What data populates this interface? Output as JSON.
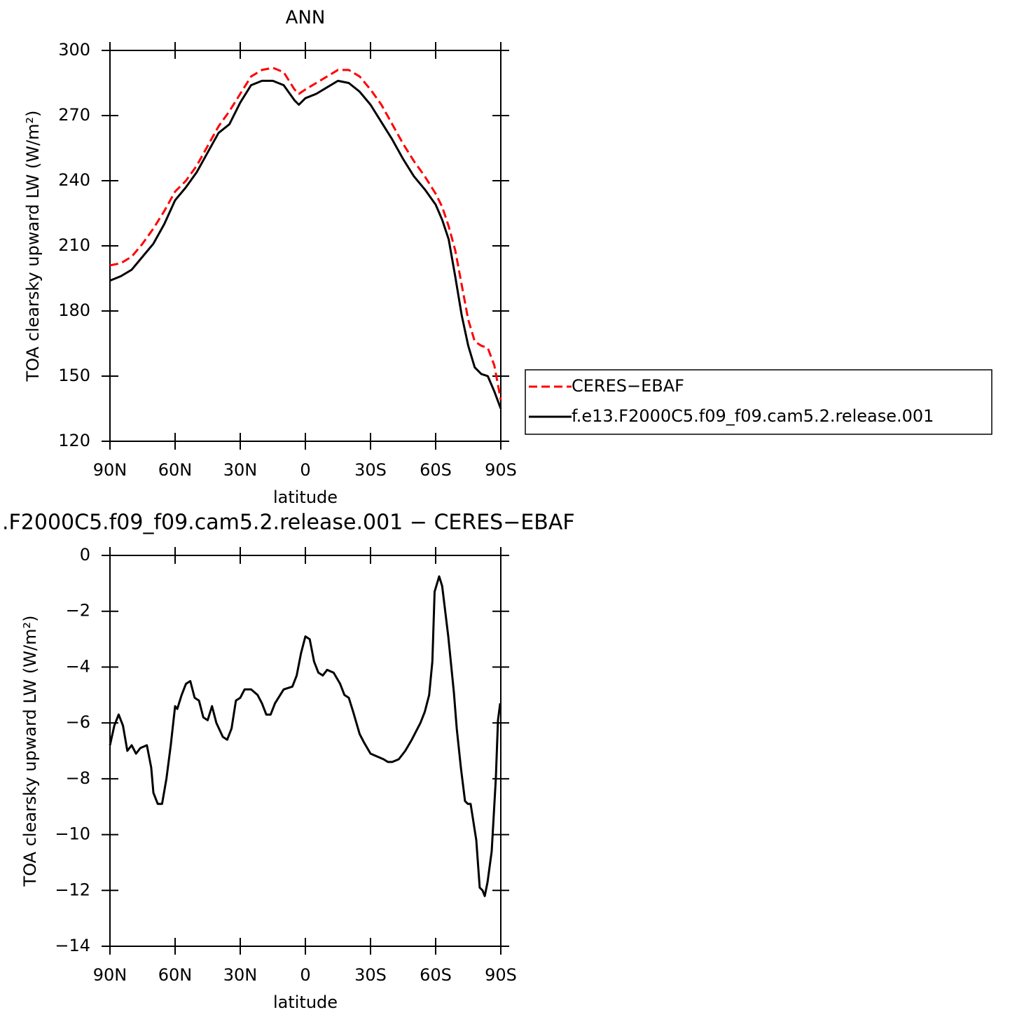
{
  "chart_data": [
    {
      "type": "line",
      "title": "ANN",
      "xlabel": "latitude",
      "ylabel": "TOA clearsky upward LW (W/m²)",
      "x": [
        90,
        85,
        80,
        75,
        70,
        65,
        60,
        55,
        50,
        45,
        40,
        35,
        30,
        25,
        20,
        15,
        10,
        5,
        3,
        0,
        -5,
        -10,
        -15,
        -20,
        -25,
        -30,
        -35,
        -40,
        -45,
        -50,
        -55,
        -60,
        -63,
        -66,
        -69,
        -72,
        -75,
        -78,
        -81,
        -84,
        -87,
        -90
      ],
      "series": [
        {
          "name": "CERES−EBAF",
          "color": "#ff0000",
          "line_style": "dashed",
          "values": [
            201,
            202,
            205,
            211,
            218,
            226,
            235,
            240,
            247,
            256,
            265,
            272,
            280,
            288,
            291,
            292,
            290,
            282,
            280,
            282,
            285,
            288,
            291,
            291,
            288,
            282,
            275,
            266,
            257,
            249,
            242,
            234,
            228,
            219,
            208,
            192,
            176,
            166,
            164,
            163,
            155,
            139
          ]
        },
        {
          "name": "f.e13.F2000C5.f09_f09.cam5.2.release.001",
          "color": "#000000",
          "line_style": "solid",
          "values": [
            194,
            196,
            199,
            205,
            211,
            220,
            231,
            237,
            244,
            253,
            262,
            266,
            276,
            284,
            286,
            286,
            284,
            277,
            275,
            278,
            280,
            283,
            286,
            285,
            281,
            275,
            267,
            259,
            250,
            242,
            236,
            229,
            222,
            213,
            196,
            178,
            164,
            154,
            151,
            150,
            143,
            135
          ]
        }
      ],
      "xlim": [
        90,
        -90
      ],
      "xticks": [
        {
          "value": 90,
          "label": "90N"
        },
        {
          "value": 60,
          "label": "60N"
        },
        {
          "value": 30,
          "label": "30N"
        },
        0,
        {
          "value": -30,
          "label": "30S"
        },
        {
          "value": -60,
          "label": "60S"
        },
        {
          "value": -90,
          "label": "90S"
        }
      ],
      "ylim": [
        120,
        300
      ],
      "yticks": [
        120,
        150,
        180,
        210,
        240,
        270,
        300
      ],
      "legend": "right"
    },
    {
      "type": "line",
      "title": ".F2000C5.f09_f09.cam5.2.release.001 − CERES−EBAF",
      "xlabel": "latitude",
      "ylabel": "TOA clearsky upward LW (W/m²)",
      "x": [
        90,
        88,
        86,
        84,
        82,
        80,
        78,
        76,
        73,
        71,
        70,
        68,
        66,
        64,
        62,
        60,
        59,
        57,
        55,
        53,
        51,
        49,
        47,
        45,
        43,
        41,
        38,
        36,
        34,
        32,
        30,
        28,
        25,
        22,
        20,
        18,
        16,
        14,
        10,
        6,
        4,
        2,
        0,
        -2,
        -4,
        -6,
        -8,
        -10,
        -13,
        -16,
        -18,
        -20,
        -22,
        -25,
        -27,
        -30,
        -33,
        -36,
        -38,
        -40,
        -43,
        -46,
        -49,
        -51,
        -53,
        -55,
        -57,
        -58.5,
        -59.5,
        -61.6,
        -63,
        -65.8,
        -68.4,
        -69.7,
        -71.6,
        -73.5,
        -74.8,
        -76.1,
        -78.7,
        -80.3,
        -81.6,
        -82.6,
        -83.9,
        -85.8,
        -87.7,
        -88.7,
        -89.7
      ],
      "series": [
        {
          "name": null,
          "color": "#000000",
          "line_style": "solid",
          "values": [
            -6.8,
            -6.1,
            -5.7,
            -6.1,
            -7.0,
            -6.8,
            -7.1,
            -6.9,
            -6.8,
            -7.6,
            -8.5,
            -8.9,
            -8.9,
            -8.0,
            -6.8,
            -5.4,
            -5.5,
            -5.0,
            -4.6,
            -4.5,
            -5.1,
            -5.2,
            -5.8,
            -5.9,
            -5.4,
            -6.0,
            -6.5,
            -6.6,
            -6.2,
            -5.2,
            -5.1,
            -4.8,
            -4.8,
            -5.0,
            -5.3,
            -5.7,
            -5.7,
            -5.3,
            -4.8,
            -4.7,
            -4.3,
            -3.5,
            -2.9,
            -3.0,
            -3.8,
            -4.2,
            -4.3,
            -4.1,
            -4.2,
            -4.6,
            -5.0,
            -5.1,
            -5.6,
            -6.4,
            -6.7,
            -7.1,
            -7.2,
            -7.3,
            -7.4,
            -7.4,
            -7.3,
            -7.0,
            -6.6,
            -6.3,
            -6.0,
            -5.6,
            -5.0,
            -3.8,
            -1.3,
            -0.75,
            -1.1,
            -2.9,
            -4.9,
            -6.2,
            -7.6,
            -8.8,
            -8.9,
            -8.9,
            -10.2,
            -11.9,
            -12.0,
            -12.2,
            -11.7,
            -10.6,
            -8.0,
            -5.9,
            -5.3
          ]
        }
      ],
      "xlim": [
        90,
        -90
      ],
      "xticks": [
        {
          "value": 90,
          "label": "90N"
        },
        {
          "value": 60,
          "label": "60N"
        },
        {
          "value": 30,
          "label": "30N"
        },
        0,
        {
          "value": -30,
          "label": "30S"
        },
        {
          "value": -60,
          "label": "60S"
        },
        {
          "value": -90,
          "label": "90S"
        }
      ],
      "ylim": [
        -14,
        0
      ],
      "yticks": [
        {
          "value": -14,
          "label": "−14"
        },
        {
          "value": -12,
          "label": "−12"
        },
        {
          "value": -10,
          "label": "−10"
        },
        {
          "value": -8,
          "label": "−8"
        },
        {
          "value": -6,
          "label": "−6"
        },
        {
          "value": -4,
          "label": "−4"
        },
        {
          "value": -2,
          "label": "−2"
        },
        0
      ]
    }
  ]
}
